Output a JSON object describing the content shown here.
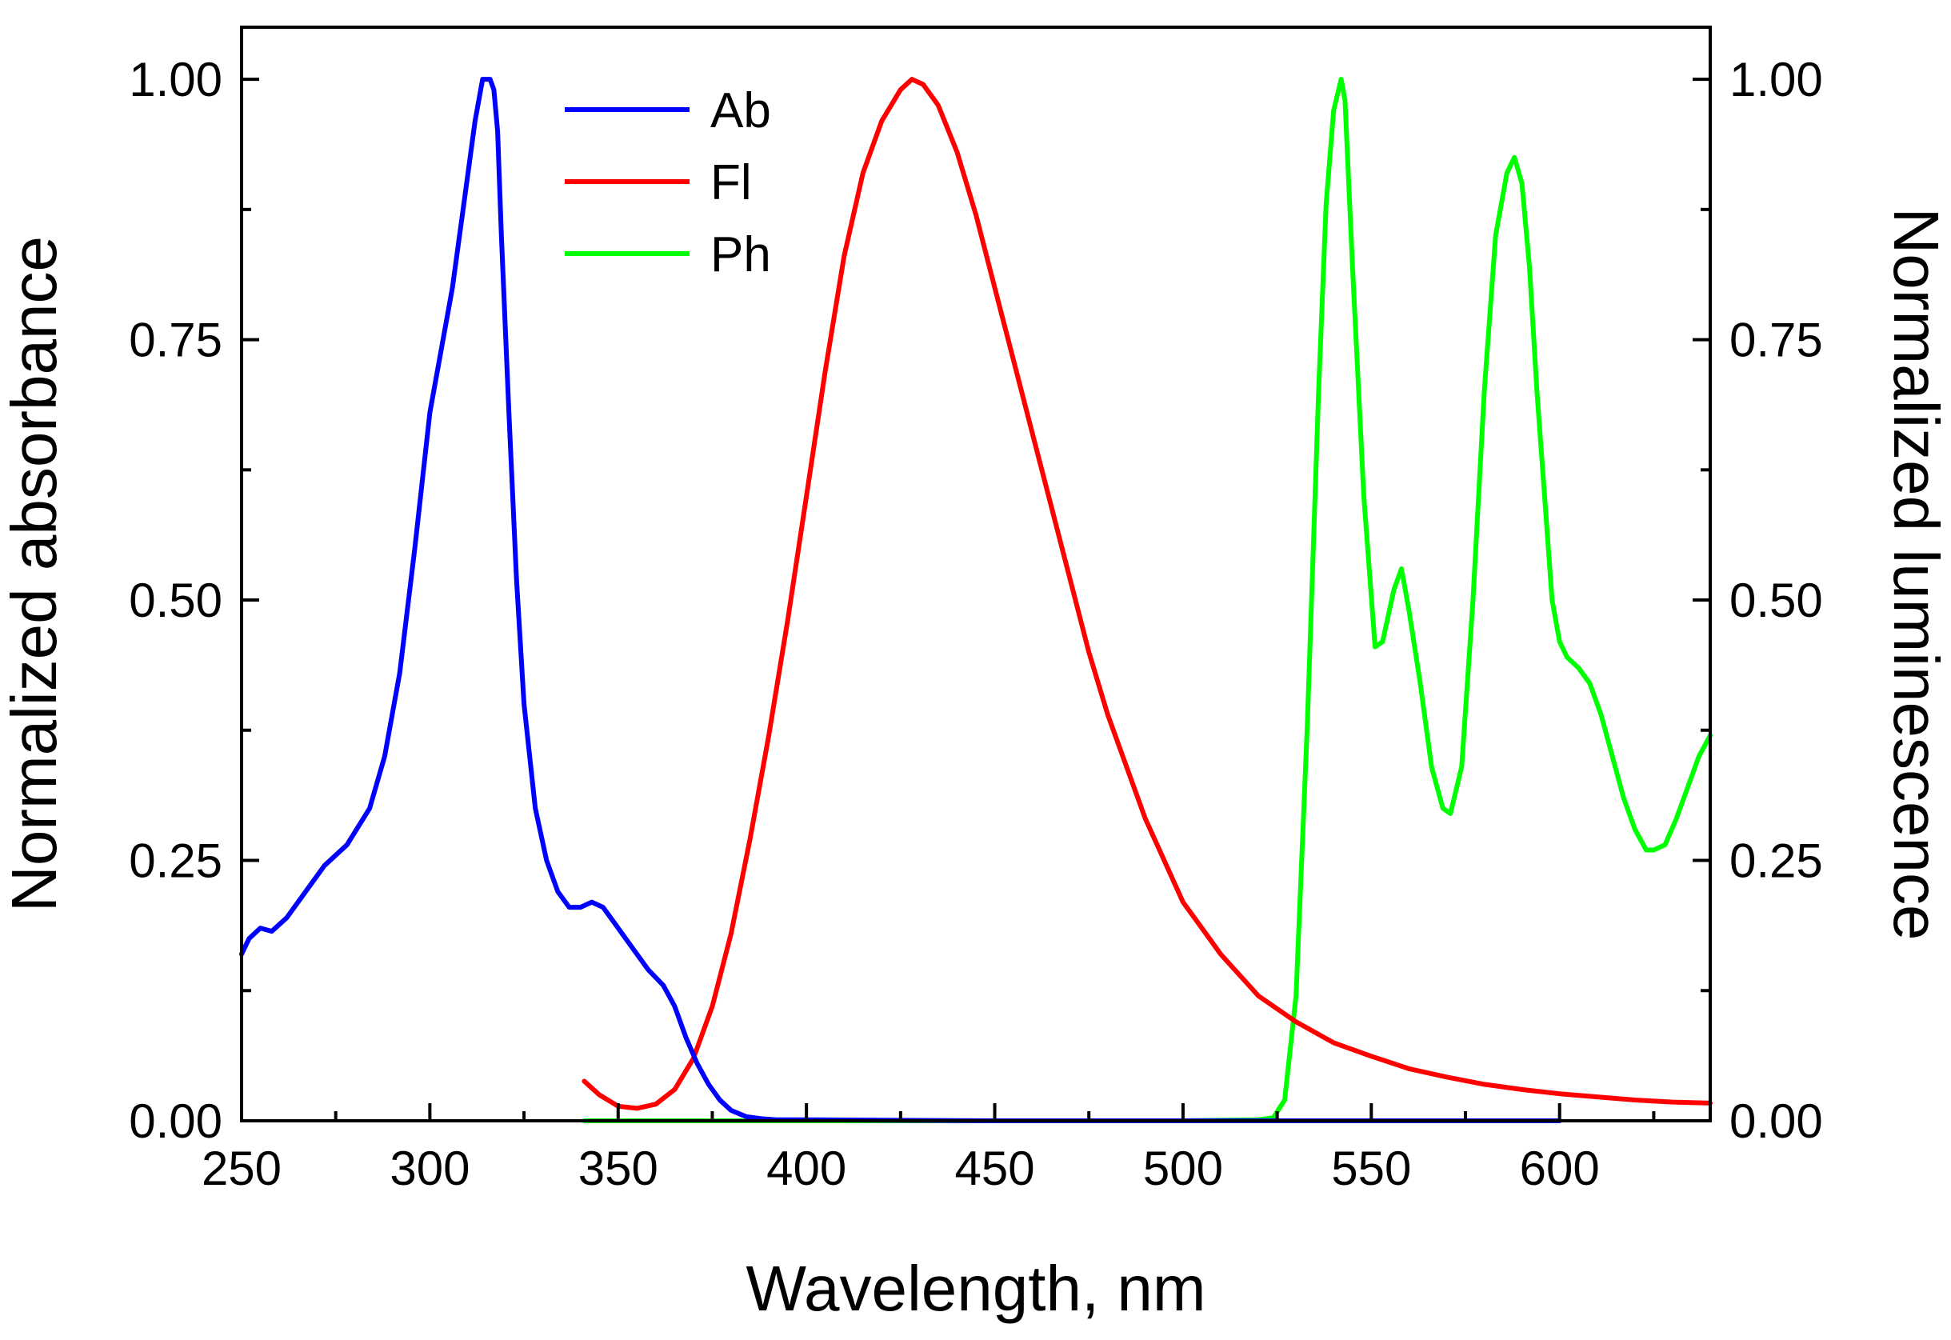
{
  "chart_data": {
    "type": "line",
    "title": "",
    "xlabel": "Wavelength, nm",
    "ylabel_left": "Normalized absorbance",
    "ylabel_right": "Normalized luminescence",
    "xlim": [
      250,
      640
    ],
    "ylim_left": [
      0,
      1.05
    ],
    "ylim_right": [
      0,
      1.05
    ],
    "xticks": [
      "250",
      "300",
      "350",
      "400",
      "450",
      "500",
      "550",
      "600"
    ],
    "xtick_values": [
      250,
      300,
      350,
      400,
      450,
      500,
      550,
      600
    ],
    "yticks_left": [
      "0.00",
      "0.25",
      "0.50",
      "0.75",
      "1.00"
    ],
    "yticks_right": [
      "0.00",
      "0.25",
      "0.50",
      "0.75",
      "1.00"
    ],
    "ytick_values": [
      0,
      0.25,
      0.5,
      0.75,
      1.0
    ],
    "legend_position": "top-left",
    "grid": false,
    "series": [
      {
        "name": "Ab",
        "axis": "left",
        "color": "#0000ff",
        "x": [
          250,
          252,
          255,
          258,
          262,
          267,
          272,
          278,
          284,
          288,
          292,
          296,
          300,
          303,
          306,
          309,
          312,
          314,
          316,
          317,
          318,
          319,
          321,
          323,
          325,
          328,
          331,
          334,
          337,
          340,
          343,
          346,
          349,
          352,
          355,
          358,
          362,
          365,
          368,
          371,
          374,
          377,
          380,
          384,
          388,
          392,
          396,
          400,
          420,
          450,
          500,
          550,
          600
        ],
        "y": [
          0.16,
          0.175,
          0.185,
          0.182,
          0.195,
          0.22,
          0.245,
          0.265,
          0.3,
          0.35,
          0.43,
          0.55,
          0.68,
          0.74,
          0.8,
          0.88,
          0.96,
          1.0,
          1.0,
          0.99,
          0.95,
          0.85,
          0.68,
          0.52,
          0.4,
          0.3,
          0.25,
          0.22,
          0.205,
          0.205,
          0.21,
          0.205,
          0.19,
          0.175,
          0.16,
          0.145,
          0.13,
          0.11,
          0.08,
          0.055,
          0.035,
          0.02,
          0.01,
          0.004,
          0.002,
          0.001,
          0.001,
          0.001,
          0.0005,
          0.0,
          0.0,
          0.0,
          0.0
        ]
      },
      {
        "name": "Fl",
        "axis": "right",
        "color": "#ff0000",
        "x": [
          341,
          345,
          350,
          355,
          360,
          365,
          370,
          375,
          380,
          385,
          390,
          395,
          400,
          405,
          410,
          415,
          420,
          425,
          428,
          431,
          435,
          440,
          445,
          450,
          455,
          460,
          465,
          470,
          475,
          480,
          485,
          490,
          495,
          500,
          505,
          510,
          520,
          530,
          540,
          550,
          560,
          570,
          580,
          590,
          600,
          610,
          620,
          630,
          640
        ],
        "y": [
          0.038,
          0.025,
          0.014,
          0.012,
          0.016,
          0.03,
          0.06,
          0.11,
          0.18,
          0.27,
          0.37,
          0.48,
          0.6,
          0.72,
          0.83,
          0.91,
          0.96,
          0.99,
          1.0,
          0.995,
          0.975,
          0.93,
          0.87,
          0.8,
          0.73,
          0.66,
          0.59,
          0.52,
          0.45,
          0.39,
          0.34,
          0.29,
          0.25,
          0.21,
          0.185,
          0.16,
          0.12,
          0.095,
          0.075,
          0.062,
          0.05,
          0.042,
          0.035,
          0.03,
          0.026,
          0.023,
          0.02,
          0.018,
          0.017
        ]
      },
      {
        "name": "Ph",
        "axis": "right",
        "color": "#00ff00",
        "x": [
          341,
          400,
          450,
          500,
          520,
          524,
          527,
          530,
          533,
          536,
          538,
          540,
          542,
          543,
          545,
          548,
          551,
          553,
          556,
          558,
          560,
          563,
          566,
          569,
          571,
          574,
          577,
          580,
          583,
          586,
          588,
          590,
          592,
          594,
          596,
          598,
          600,
          602,
          605,
          608,
          611,
          614,
          617,
          620,
          623,
          625,
          628,
          631,
          634,
          637,
          640
        ],
        "y": [
          0.0,
          0.0,
          0.0,
          0.0,
          0.001,
          0.003,
          0.02,
          0.12,
          0.38,
          0.7,
          0.88,
          0.97,
          1.0,
          0.98,
          0.82,
          0.6,
          0.455,
          0.46,
          0.51,
          0.53,
          0.49,
          0.42,
          0.34,
          0.3,
          0.295,
          0.34,
          0.5,
          0.7,
          0.85,
          0.91,
          0.925,
          0.9,
          0.82,
          0.7,
          0.6,
          0.5,
          0.46,
          0.445,
          0.435,
          0.42,
          0.39,
          0.35,
          0.31,
          0.28,
          0.26,
          0.26,
          0.265,
          0.29,
          0.32,
          0.35,
          0.37
        ]
      }
    ]
  }
}
